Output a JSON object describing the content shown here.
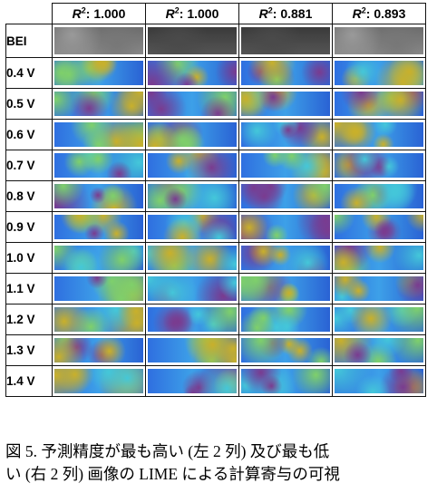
{
  "figure": {
    "column_headers": [
      {
        "prefix": "R",
        "sup": "2",
        "value": ": 1.000"
      },
      {
        "prefix": "R",
        "sup": "2",
        "value": ": 1.000"
      },
      {
        "prefix": "R",
        "sup": "2",
        "value": ": 0.881"
      },
      {
        "prefix": "R",
        "sup": "2",
        "value": ": 0.893"
      }
    ],
    "bei_label": "BEI",
    "voltage_rows": [
      "0.4 V",
      "0.5 V",
      "0.6 V",
      "0.7 V",
      "0.8 V",
      "0.9 V",
      "1.0 V",
      "1.1 V",
      "1.2 V",
      "1.3 V",
      "1.4 V"
    ]
  },
  "caption": {
    "line1": "図 5. 予測精度が最も高い (左 2 列) 及び最も低",
    "line2": "い (右 2 列) 画像の LIME による計算寄与の可視"
  }
}
